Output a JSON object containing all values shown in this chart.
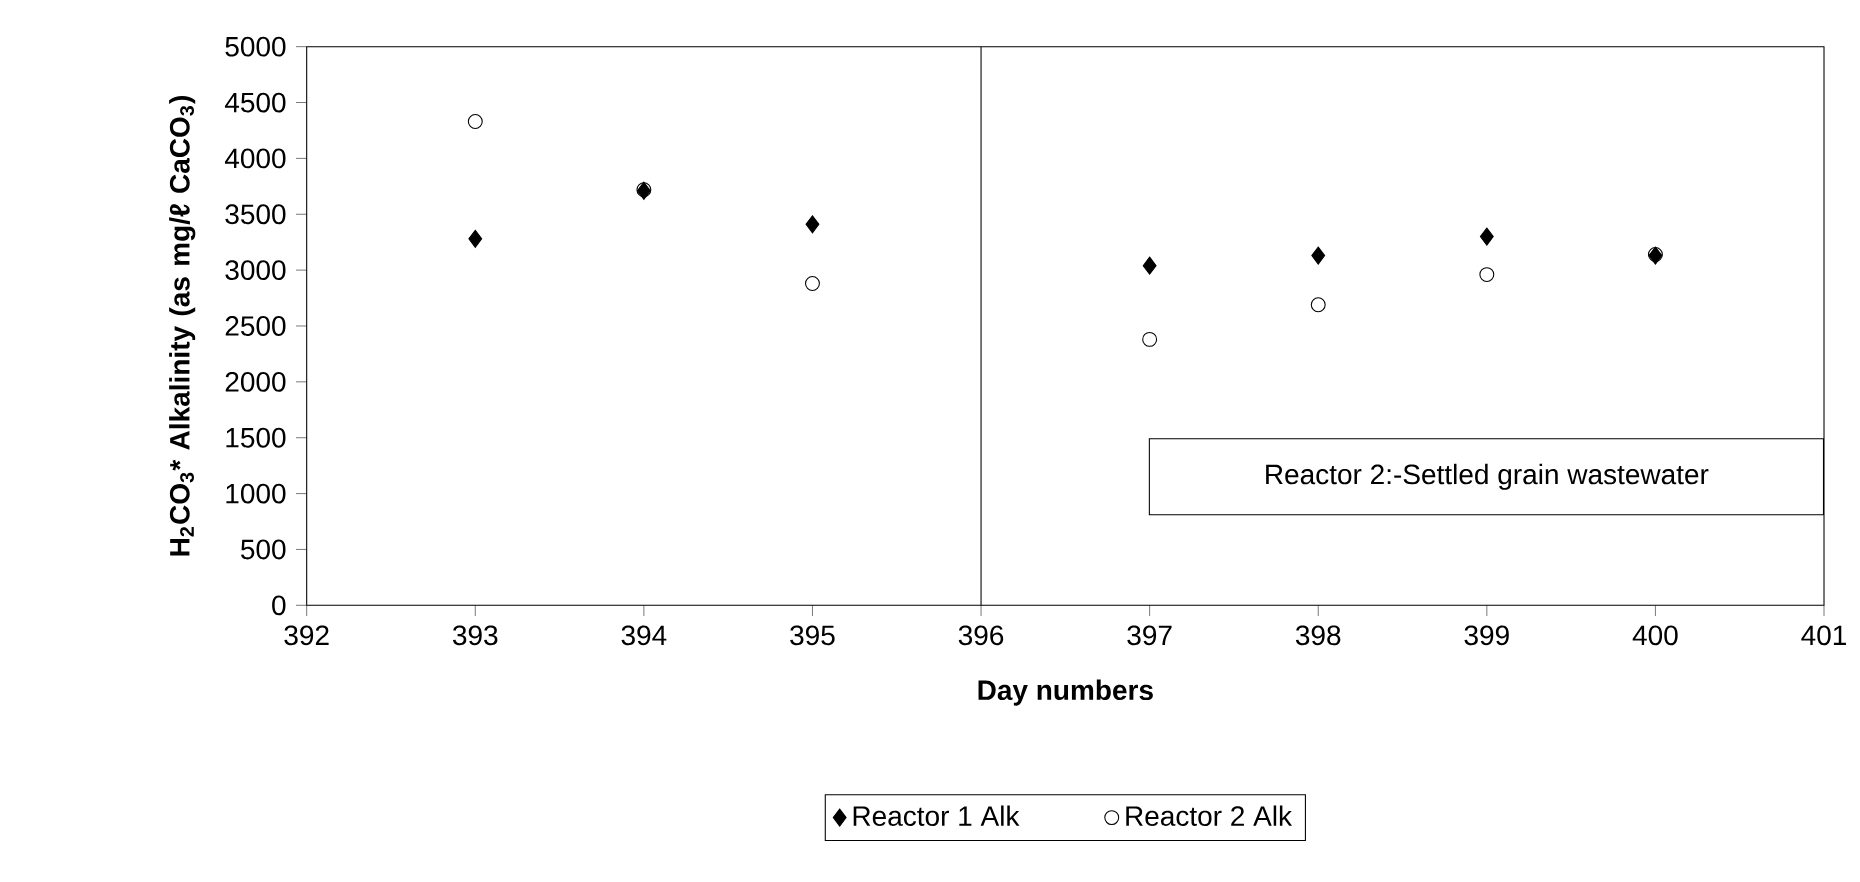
{
  "chart_data": {
    "type": "scatter",
    "xlabel": "Day numbers",
    "ylabel": "H$_{2}$CO$_{3}$* Alkalinity (as mg/ℓ CaCO$_{3}$)",
    "x": [
      393,
      394,
      395,
      397,
      398,
      399,
      400
    ],
    "series": [
      {
        "name": "Reactor 1 Alk",
        "color": "#000000",
        "marker": "diamond",
        "values": [
          3280,
          3710,
          3410,
          3040,
          3130,
          3300,
          3130
        ]
      },
      {
        "name": "Reactor 2 Alk",
        "color": "#000000",
        "marker": "circle",
        "values": [
          4330,
          3720,
          2880,
          2380,
          2690,
          2960,
          3140
        ]
      }
    ],
    "xlim": [
      392,
      401
    ],
    "xticks": [
      392,
      393,
      394,
      395,
      396,
      397,
      398,
      399,
      400,
      401
    ],
    "ylim": [
      0,
      5000
    ],
    "yticks": [
      0,
      500,
      1000,
      1500,
      2000,
      2500,
      3000,
      3500,
      4000,
      4500,
      5000
    ],
    "ref_lines": [
      {
        "axis": "x",
        "value": 396
      }
    ],
    "annotations": [
      "Reactor 2:-Settled grain wastewater"
    ],
    "legend": "bottom",
    "grid": false
  }
}
